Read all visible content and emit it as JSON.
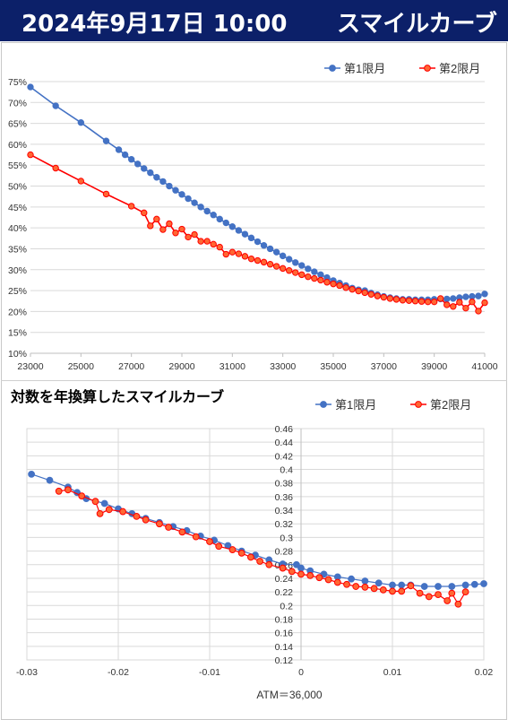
{
  "header": {
    "date": "2024年9月17日 10:00",
    "title": "スマイルカーブ"
  },
  "colors": {
    "header_bg": "#0c2069",
    "series1": "#4472c4",
    "series2": "#ff0000",
    "series2_fill": "#ff6633"
  },
  "chart_data": [
    {
      "type": "line",
      "title": "",
      "xlabel": "",
      "ylabel": "",
      "xlim": [
        23000,
        41000
      ],
      "ylim": [
        0.1,
        0.75
      ],
      "grid": true,
      "legend": "top-right",
      "x_ticks": [
        "23000",
        "25000",
        "27000",
        "29000",
        "31000",
        "33000",
        "35000",
        "37000",
        "39000",
        "41000"
      ],
      "y_ticks": [
        "10%",
        "15%",
        "20%",
        "25%",
        "30%",
        "35%",
        "40%",
        "45%",
        "50%",
        "55%",
        "60%",
        "65%",
        "70%",
        "75%"
      ],
      "series": [
        {
          "name": "第1限月",
          "points": [
            [
              23000,
              0.737
            ],
            [
              24000,
              0.692
            ],
            [
              25000,
              0.652
            ],
            [
              26000,
              0.608
            ],
            [
              26500,
              0.587
            ],
            [
              26750,
              0.575
            ],
            [
              27000,
              0.564
            ],
            [
              27250,
              0.553
            ],
            [
              27500,
              0.542
            ],
            [
              27750,
              0.532
            ],
            [
              28000,
              0.521
            ],
            [
              28250,
              0.511
            ],
            [
              28500,
              0.5
            ],
            [
              28750,
              0.49
            ],
            [
              29000,
              0.48
            ],
            [
              29250,
              0.47
            ],
            [
              29500,
              0.46
            ],
            [
              29750,
              0.45
            ],
            [
              30000,
              0.44
            ],
            [
              30250,
              0.431
            ],
            [
              30500,
              0.421
            ],
            [
              30750,
              0.412
            ],
            [
              31000,
              0.403
            ],
            [
              31250,
              0.394
            ],
            [
              31500,
              0.385
            ],
            [
              31750,
              0.376
            ],
            [
              32000,
              0.367
            ],
            [
              32250,
              0.358
            ],
            [
              32500,
              0.35
            ],
            [
              32750,
              0.342
            ],
            [
              33000,
              0.333
            ],
            [
              33250,
              0.325
            ],
            [
              33500,
              0.317
            ],
            [
              33750,
              0.31
            ],
            [
              34000,
              0.302
            ],
            [
              34250,
              0.295
            ],
            [
              34500,
              0.288
            ],
            [
              34750,
              0.281
            ],
            [
              35000,
              0.274
            ],
            [
              35250,
              0.268
            ],
            [
              35500,
              0.262
            ],
            [
              35750,
              0.256
            ],
            [
              36000,
              0.252
            ],
            [
              36250,
              0.25
            ],
            [
              36500,
              0.244
            ],
            [
              36750,
              0.24
            ],
            [
              37000,
              0.236
            ],
            [
              37250,
              0.233
            ],
            [
              37500,
              0.231
            ],
            [
              37750,
              0.229
            ],
            [
              38000,
              0.229
            ],
            [
              38250,
              0.228
            ],
            [
              38500,
              0.228
            ],
            [
              38750,
              0.228
            ],
            [
              39000,
              0.229
            ],
            [
              39250,
              0.23
            ],
            [
              39500,
              0.23
            ],
            [
              39750,
              0.231
            ],
            [
              40000,
              0.233
            ],
            [
              40250,
              0.235
            ],
            [
              40500,
              0.236
            ],
            [
              40750,
              0.237
            ],
            [
              41000,
              0.242
            ]
          ]
        },
        {
          "name": "第2限月",
          "points": [
            [
              23000,
              0.575
            ],
            [
              24000,
              0.543
            ],
            [
              25000,
              0.512
            ],
            [
              26000,
              0.481
            ],
            [
              27000,
              0.452
            ],
            [
              27500,
              0.436
            ],
            [
              27750,
              0.405
            ],
            [
              28000,
              0.421
            ],
            [
              28250,
              0.396
            ],
            [
              28500,
              0.41
            ],
            [
              28750,
              0.388
            ],
            [
              29000,
              0.397
            ],
            [
              29250,
              0.378
            ],
            [
              29500,
              0.384
            ],
            [
              29750,
              0.368
            ],
            [
              30000,
              0.368
            ],
            [
              30250,
              0.361
            ],
            [
              30500,
              0.354
            ],
            [
              30750,
              0.337
            ],
            [
              31000,
              0.342
            ],
            [
              31250,
              0.338
            ],
            [
              31500,
              0.332
            ],
            [
              31750,
              0.326
            ],
            [
              32000,
              0.322
            ],
            [
              32250,
              0.318
            ],
            [
              32500,
              0.313
            ],
            [
              32750,
              0.308
            ],
            [
              33000,
              0.303
            ],
            [
              33250,
              0.298
            ],
            [
              33500,
              0.293
            ],
            [
              33750,
              0.288
            ],
            [
              34000,
              0.283
            ],
            [
              34250,
              0.279
            ],
            [
              34500,
              0.275
            ],
            [
              34750,
              0.27
            ],
            [
              35000,
              0.266
            ],
            [
              35250,
              0.262
            ],
            [
              35500,
              0.257
            ],
            [
              35750,
              0.253
            ],
            [
              36000,
              0.249
            ],
            [
              36250,
              0.245
            ],
            [
              36500,
              0.241
            ],
            [
              36750,
              0.237
            ],
            [
              37000,
              0.234
            ],
            [
              37250,
              0.231
            ],
            [
              37500,
              0.229
            ],
            [
              37750,
              0.227
            ],
            [
              38000,
              0.226
            ],
            [
              38250,
              0.225
            ],
            [
              38500,
              0.224
            ],
            [
              38750,
              0.223
            ],
            [
              39000,
              0.223
            ],
            [
              39250,
              0.231
            ],
            [
              39500,
              0.216
            ],
            [
              39750,
              0.212
            ],
            [
              40000,
              0.222
            ],
            [
              40250,
              0.208
            ],
            [
              40500,
              0.223
            ],
            [
              40750,
              0.201
            ],
            [
              41000,
              0.221
            ]
          ]
        }
      ]
    },
    {
      "type": "scatter",
      "title": "対数を年換算したスマイルカーブ",
      "xlabel": "ATM＝36,000",
      "ylabel": "",
      "xlim": [
        -0.03,
        0.02
      ],
      "ylim": [
        0.12,
        0.46
      ],
      "grid": true,
      "legend": "top-right",
      "x_ticks": [
        "-0.03",
        "-0.02",
        "-0.01",
        "0",
        "0.01",
        "0.02"
      ],
      "y_ticks": [
        "0.12",
        "0.14",
        "0.16",
        "0.18",
        "0.2",
        "0.22",
        "0.24",
        "0.26",
        "0.28",
        "0.3",
        "0.32",
        "0.34",
        "0.36",
        "0.38",
        "0.4",
        "0.42",
        "0.44",
        "0.46"
      ],
      "series": [
        {
          "name": "第1限月",
          "points": [
            [
              -0.0295,
              0.393
            ],
            [
              -0.0275,
              0.384
            ],
            [
              -0.0255,
              0.374
            ],
            [
              -0.0245,
              0.366
            ],
            [
              -0.0235,
              0.357
            ],
            [
              -0.0215,
              0.35
            ],
            [
              -0.02,
              0.342
            ],
            [
              -0.0185,
              0.335
            ],
            [
              -0.017,
              0.328
            ],
            [
              -0.0155,
              0.322
            ],
            [
              -0.014,
              0.316
            ],
            [
              -0.0125,
              0.31
            ],
            [
              -0.011,
              0.302
            ],
            [
              -0.0095,
              0.296
            ],
            [
              -0.008,
              0.288
            ],
            [
              -0.0065,
              0.28
            ],
            [
              -0.005,
              0.274
            ],
            [
              -0.0035,
              0.267
            ],
            [
              -0.002,
              0.261
            ],
            [
              -0.0005,
              0.26
            ],
            [
              0.0,
              0.255
            ],
            [
              0.001,
              0.251
            ],
            [
              0.0025,
              0.246
            ],
            [
              0.004,
              0.242
            ],
            [
              0.0055,
              0.239
            ],
            [
              0.007,
              0.236
            ],
            [
              0.0085,
              0.233
            ],
            [
              0.01,
              0.23
            ],
            [
              0.011,
              0.23
            ],
            [
              0.012,
              0.23
            ],
            [
              0.0135,
              0.228
            ],
            [
              0.015,
              0.228
            ],
            [
              0.0165,
              0.228
            ],
            [
              0.018,
              0.23
            ],
            [
              0.019,
              0.231
            ],
            [
              0.02,
              0.232
            ]
          ]
        },
        {
          "name": "第2限月",
          "points": [
            [
              -0.0265,
              0.368
            ],
            [
              -0.0255,
              0.37
            ],
            [
              -0.024,
              0.361
            ],
            [
              -0.0225,
              0.353
            ],
            [
              -0.022,
              0.335
            ],
            [
              -0.021,
              0.341
            ],
            [
              -0.0195,
              0.338
            ],
            [
              -0.018,
              0.331
            ],
            [
              -0.017,
              0.326
            ],
            [
              -0.0155,
              0.32
            ],
            [
              -0.0145,
              0.315
            ],
            [
              -0.013,
              0.308
            ],
            [
              -0.0115,
              0.301
            ],
            [
              -0.01,
              0.294
            ],
            [
              -0.009,
              0.287
            ],
            [
              -0.0075,
              0.282
            ],
            [
              -0.0065,
              0.277
            ],
            [
              -0.0055,
              0.271
            ],
            [
              -0.0045,
              0.265
            ],
            [
              -0.0035,
              0.26
            ],
            [
              -0.002,
              0.255
            ],
            [
              -0.001,
              0.25
            ],
            [
              0.0,
              0.246
            ],
            [
              0.001,
              0.244
            ],
            [
              0.002,
              0.241
            ],
            [
              0.003,
              0.238
            ],
            [
              0.004,
              0.234
            ],
            [
              0.005,
              0.231
            ],
            [
              0.006,
              0.228
            ],
            [
              0.007,
              0.227
            ],
            [
              0.008,
              0.225
            ],
            [
              0.009,
              0.223
            ],
            [
              0.01,
              0.221
            ],
            [
              0.011,
              0.221
            ],
            [
              0.012,
              0.229
            ],
            [
              0.013,
              0.218
            ],
            [
              0.014,
              0.213
            ],
            [
              0.015,
              0.216
            ],
            [
              0.016,
              0.207
            ],
            [
              0.0165,
              0.218
            ],
            [
              0.0172,
              0.202
            ],
            [
              0.018,
              0.22
            ]
          ]
        }
      ]
    }
  ]
}
